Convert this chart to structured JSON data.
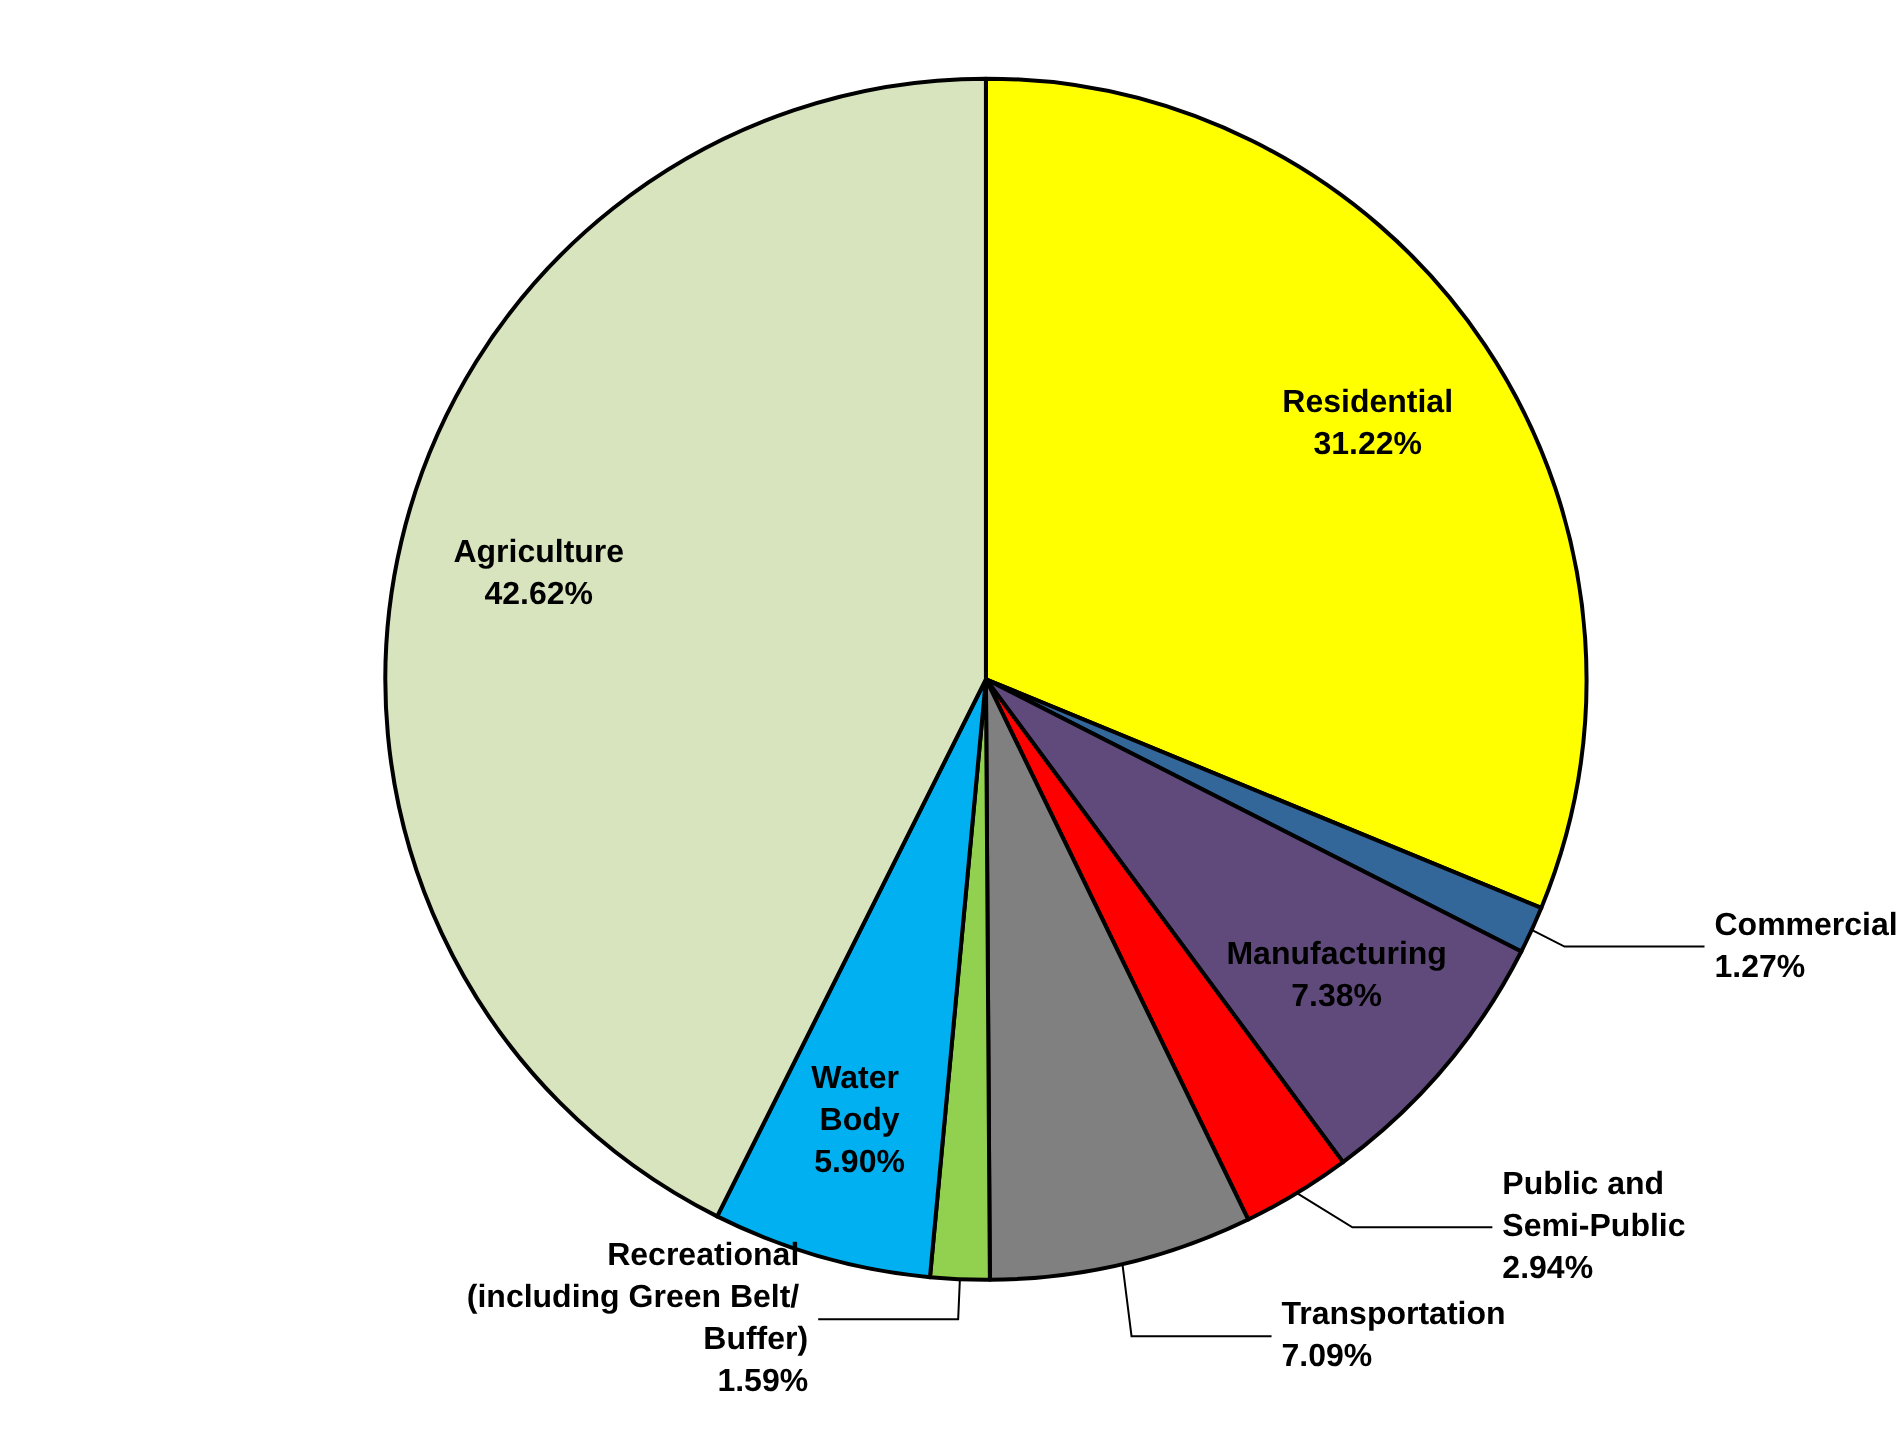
{
  "chart_data": {
    "type": "pie",
    "categories": [
      "Residential",
      "Commercial",
      "Manufacturing",
      "Public and Semi-Public",
      "Transportation",
      "Recreational (including Green Belt/ Buffer)",
      "Water Body",
      "Agriculture"
    ],
    "values": [
      31.22,
      1.27,
      7.38,
      2.94,
      7.09,
      1.59,
      5.9,
      42.62
    ],
    "colors": [
      "#ffff00",
      "#336699",
      "#604a7b",
      "#ff0000",
      "#808080",
      "#92d050",
      "#00b0f0",
      "#d7e4bd"
    ],
    "value_labels": [
      "31.22%",
      "1.27%",
      "7.38%",
      "2.94%",
      "7.09%",
      "1.59%",
      "5.90%",
      "42.62%"
    ],
    "legend": false
  }
}
